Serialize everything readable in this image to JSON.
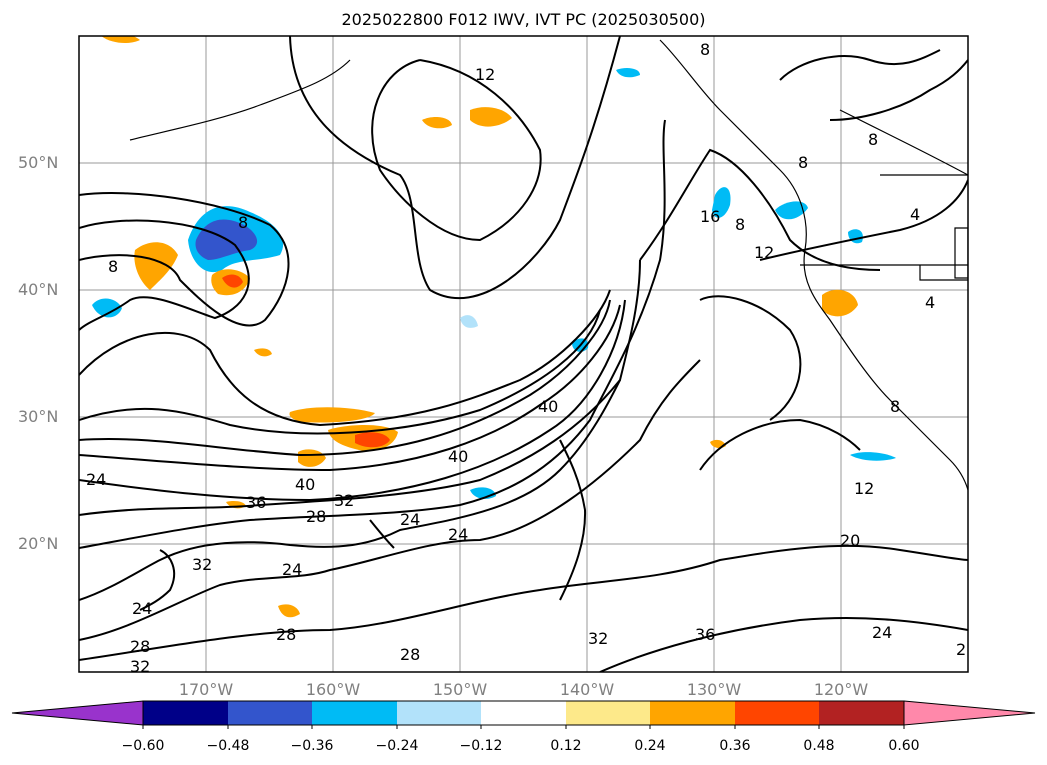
{
  "title": "2025022800 F012 IWV, IVT PC (2025030500)",
  "map": {
    "projection": "lat-lon",
    "lon_range": [
      "180°W",
      "110°W"
    ],
    "lat_range": [
      "10°N",
      "60°N"
    ],
    "grid": true
  },
  "lat_labels": [
    "50°N",
    "40°N",
    "30°N",
    "20°N"
  ],
  "lon_labels": [
    "170°W",
    "160°W",
    "150°W",
    "140°W",
    "130°W",
    "120°W"
  ],
  "contour_labels": [
    "12",
    "8",
    "8",
    "8",
    "16",
    "8",
    "12",
    "4",
    "4",
    "8",
    "40",
    "40",
    "40",
    "36",
    "32",
    "28",
    "24",
    "24",
    "24",
    "24",
    "32",
    "24",
    "28",
    "32",
    "28",
    "28",
    "32",
    "36",
    "20",
    "24",
    "12",
    "2"
  ],
  "colorbar": {
    "ticks": [
      "−0.60",
      "−0.48",
      "−0.36",
      "−0.24",
      "−0.12",
      "0.12",
      "0.24",
      "0.36",
      "0.48",
      "0.60"
    ],
    "colors": [
      "#9933cc",
      "#000088",
      "#3355cc",
      "#00bbf5",
      "#b2e2fa",
      "#ffffff",
      "#fde98a",
      "#ffa500",
      "#ff4500",
      "#b22222",
      "#ff88aa"
    ]
  }
}
